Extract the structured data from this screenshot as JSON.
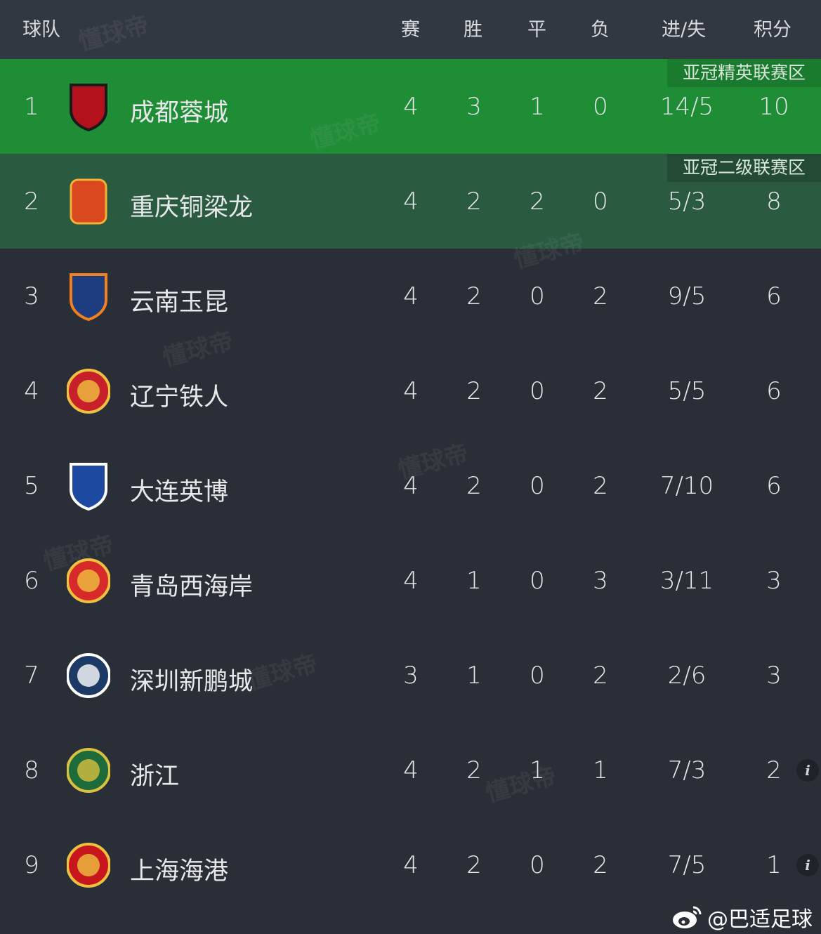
{
  "header": {
    "team": "球队",
    "played": "赛",
    "won": "胜",
    "drawn": "平",
    "lost": "负",
    "goals": "进/失",
    "points": "积分"
  },
  "zones": {
    "acl_elite": "亚冠精英联赛区",
    "acl_two": "亚冠二级联赛区"
  },
  "colors": {
    "background": "#2a2f37",
    "header": "#323842",
    "acl_elite": "#1f8c36",
    "acl_two": "#2a5a40"
  },
  "rows": [
    {
      "rank": "1",
      "name": "成都蓉城",
      "played": "4",
      "won": "3",
      "drawn": "1",
      "lost": "0",
      "goals": "14/5",
      "points": "10",
      "logo": "chengdu-rongcheng-logo"
    },
    {
      "rank": "2",
      "name": "重庆铜梁龙",
      "played": "4",
      "won": "2",
      "drawn": "2",
      "lost": "0",
      "goals": "5/3",
      "points": "8",
      "logo": "chongqing-tongliangl-logo"
    },
    {
      "rank": "3",
      "name": "云南玉昆",
      "played": "4",
      "won": "2",
      "drawn": "0",
      "lost": "2",
      "goals": "9/5",
      "points": "6",
      "logo": "yunnan-yukun-logo"
    },
    {
      "rank": "4",
      "name": "辽宁铁人",
      "played": "4",
      "won": "2",
      "drawn": "0",
      "lost": "2",
      "goals": "5/5",
      "points": "6",
      "logo": "liaoning-tieren-logo"
    },
    {
      "rank": "5",
      "name": "大连英博",
      "played": "4",
      "won": "2",
      "drawn": "0",
      "lost": "2",
      "goals": "7/10",
      "points": "6",
      "logo": "dalian-yingbo-logo"
    },
    {
      "rank": "6",
      "name": "青岛西海岸",
      "played": "4",
      "won": "1",
      "drawn": "0",
      "lost": "3",
      "goals": "3/11",
      "points": "3",
      "logo": "qingdao-west-coast-logo"
    },
    {
      "rank": "7",
      "name": "深圳新鹏城",
      "played": "3",
      "won": "1",
      "drawn": "0",
      "lost": "2",
      "goals": "2/6",
      "points": "3",
      "logo": "shenzhen-peng-city-logo"
    },
    {
      "rank": "8",
      "name": "浙江",
      "played": "4",
      "won": "2",
      "drawn": "1",
      "lost": "1",
      "goals": "7/3",
      "points": "2",
      "logo": "zhejiang-logo",
      "info": "i"
    },
    {
      "rank": "9",
      "name": "上海海港",
      "played": "4",
      "won": "2",
      "drawn": "0",
      "lost": "2",
      "goals": "7/5",
      "points": "1",
      "logo": "shanghai-port-logo",
      "info": "i"
    }
  ],
  "watermark": "懂球帝",
  "footer": {
    "handle": "@巴适足球"
  }
}
